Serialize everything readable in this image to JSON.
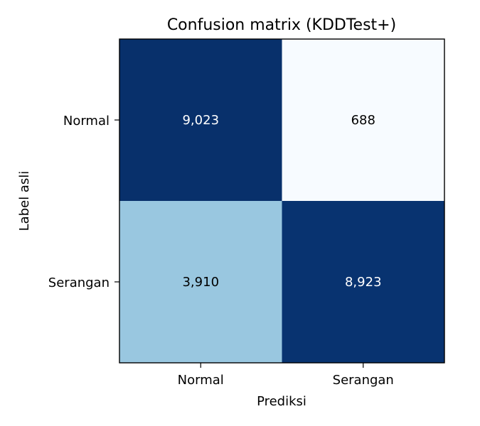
{
  "chart_data": {
    "type": "heatmap",
    "title": "Confusion matrix (KDDTest+)",
    "xlabel": "Prediksi",
    "ylabel": "Label asli",
    "x_categories": [
      "Normal",
      "Serangan"
    ],
    "y_categories": [
      "Normal",
      "Serangan"
    ],
    "values": [
      [
        9023,
        688
      ],
      [
        3910,
        8923
      ]
    ],
    "value_labels": [
      [
        "9,023",
        "688"
      ],
      [
        "3,910",
        "8,923"
      ]
    ],
    "colormap": "Blues",
    "colors": {
      "low": "#f7fbff",
      "high": "#08306b",
      "text_dark": "#000000",
      "text_light": "#ffffff"
    },
    "grid": false,
    "legend": "none"
  }
}
